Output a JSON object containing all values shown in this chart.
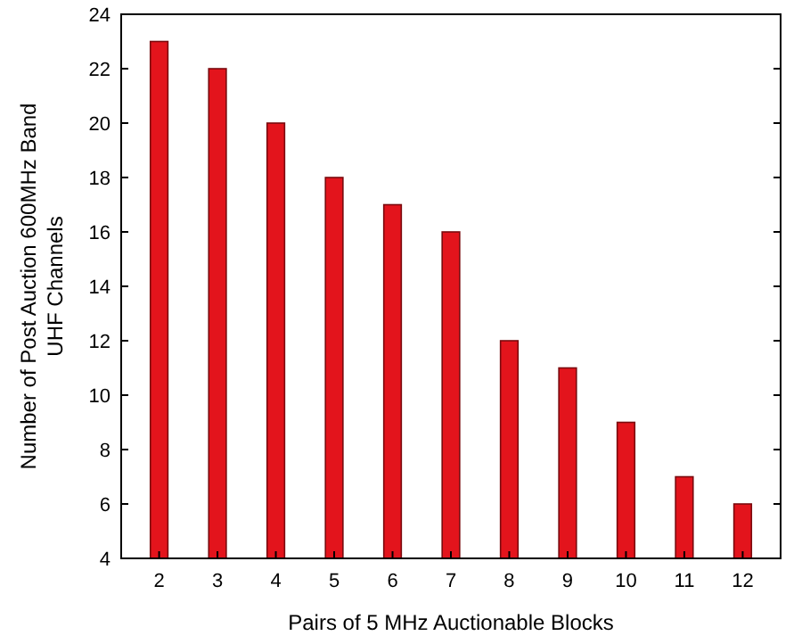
{
  "chart_data": {
    "type": "bar",
    "xlabel": "Pairs of 5 MHz Auctionable Blocks",
    "ylabel": "Number of Post Auction 600MHz Band UHF Channels",
    "categories": [
      "2",
      "3",
      "4",
      "5",
      "6",
      "7",
      "8",
      "9",
      "10",
      "11",
      "12"
    ],
    "values": [
      23,
      22,
      20,
      18,
      17,
      16,
      12,
      11,
      9,
      7,
      6
    ],
    "color": "#e3141c",
    "ylim": [
      4,
      24
    ],
    "yticks": [
      4,
      6,
      8,
      10,
      12,
      14,
      16,
      18,
      20,
      22,
      24
    ],
    "grid": false
  }
}
